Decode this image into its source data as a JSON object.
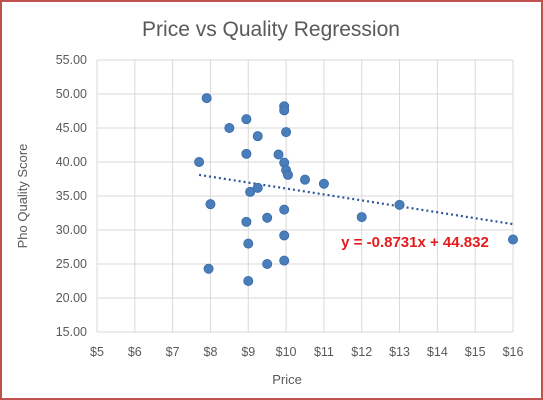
{
  "chart_data": {
    "type": "scatter",
    "title": "Price vs Quality Regression",
    "xlabel": "Price",
    "ylabel": "Pho Quality Score",
    "xlim": [
      5,
      16
    ],
    "ylim": [
      15,
      55
    ],
    "x_ticks": [
      "$5",
      "$6",
      "$7",
      "$8",
      "$9",
      "$10",
      "$11",
      "$12",
      "$13",
      "$14",
      "$15",
      "$16"
    ],
    "y_ticks": [
      "15.00",
      "20.00",
      "25.00",
      "30.00",
      "35.00",
      "40.00",
      "45.00",
      "50.00",
      "55.00"
    ],
    "grid": true,
    "legend": false,
    "marker_color": "#4a7ebb",
    "trendline_color": "#2e5597",
    "equation_color": "#e41a1c",
    "points": [
      {
        "x": 7.9,
        "y": 49.4
      },
      {
        "x": 8.5,
        "y": 45.0
      },
      {
        "x": 8.95,
        "y": 46.3
      },
      {
        "x": 9.95,
        "y": 48.2
      },
      {
        "x": 9.95,
        "y": 47.6
      },
      {
        "x": 9.25,
        "y": 43.8
      },
      {
        "x": 10.0,
        "y": 44.4
      },
      {
        "x": 8.95,
        "y": 41.2
      },
      {
        "x": 9.8,
        "y": 41.1
      },
      {
        "x": 7.7,
        "y": 40.0
      },
      {
        "x": 9.95,
        "y": 39.9
      },
      {
        "x": 10.0,
        "y": 38.8
      },
      {
        "x": 10.05,
        "y": 38.1
      },
      {
        "x": 10.5,
        "y": 37.4
      },
      {
        "x": 11.0,
        "y": 36.8
      },
      {
        "x": 9.25,
        "y": 36.2
      },
      {
        "x": 9.05,
        "y": 35.6
      },
      {
        "x": 8.0,
        "y": 33.8
      },
      {
        "x": 13.0,
        "y": 33.7
      },
      {
        "x": 9.95,
        "y": 33.0
      },
      {
        "x": 9.5,
        "y": 31.8
      },
      {
        "x": 12.0,
        "y": 31.9
      },
      {
        "x": 8.95,
        "y": 31.2
      },
      {
        "x": 9.95,
        "y": 29.2
      },
      {
        "x": 9.0,
        "y": 28.0
      },
      {
        "x": 16.0,
        "y": 28.6
      },
      {
        "x": 9.95,
        "y": 25.5
      },
      {
        "x": 9.5,
        "y": 25.0
      },
      {
        "x": 7.95,
        "y": 24.3
      },
      {
        "x": 9.0,
        "y": 22.5
      }
    ],
    "trendline": {
      "slope": -0.8731,
      "intercept": 44.832,
      "x_start": 7.7,
      "x_end": 16.0,
      "label": "y = -0.8731x + 44.832"
    }
  }
}
